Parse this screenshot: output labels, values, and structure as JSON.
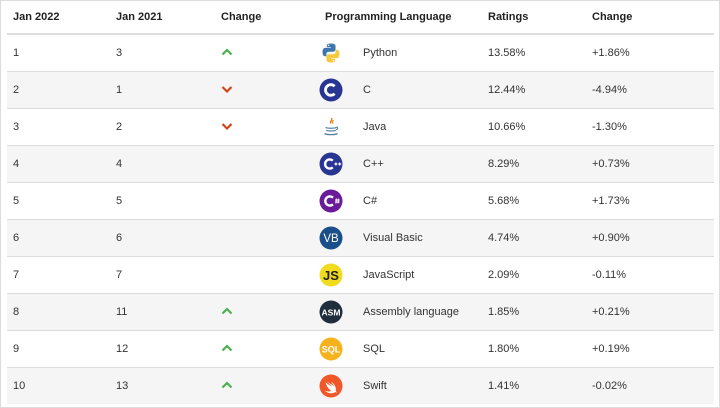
{
  "table": {
    "headers": {
      "jan2022": "Jan 2022",
      "jan2021": "Jan 2021",
      "change": "Change",
      "language": "Programming Language",
      "ratings": "Ratings",
      "delta": "Change"
    },
    "rows": [
      {
        "jan2022": "1",
        "jan2021": "3",
        "trend": "up",
        "logo": "python-logo",
        "language": "Python",
        "ratings": "13.58%",
        "delta": "+1.86%"
      },
      {
        "jan2022": "2",
        "jan2021": "1",
        "trend": "down",
        "logo": "c-logo",
        "language": "C",
        "ratings": "12.44%",
        "delta": "-4.94%"
      },
      {
        "jan2022": "3",
        "jan2021": "2",
        "trend": "down",
        "logo": "java-logo",
        "language": "Java",
        "ratings": "10.66%",
        "delta": "-1.30%"
      },
      {
        "jan2022": "4",
        "jan2021": "4",
        "trend": "none",
        "logo": "cpp-logo",
        "language": "C++",
        "ratings": "8.29%",
        "delta": "+0.73%"
      },
      {
        "jan2022": "5",
        "jan2021": "5",
        "trend": "none",
        "logo": "csharp-logo",
        "language": "C#",
        "ratings": "5.68%",
        "delta": "+1.73%"
      },
      {
        "jan2022": "6",
        "jan2021": "6",
        "trend": "none",
        "logo": "visual-basic-logo",
        "language": "Visual Basic",
        "ratings": "4.74%",
        "delta": "+0.90%"
      },
      {
        "jan2022": "7",
        "jan2021": "7",
        "trend": "none",
        "logo": "javascript-logo",
        "language": "JavaScript",
        "ratings": "2.09%",
        "delta": "-0.11%"
      },
      {
        "jan2022": "8",
        "jan2021": "11",
        "trend": "up",
        "logo": "assembly-logo",
        "language": "Assembly language",
        "ratings": "1.85%",
        "delta": "+0.21%"
      },
      {
        "jan2022": "9",
        "jan2021": "12",
        "trend": "up",
        "logo": "sql-logo",
        "language": "SQL",
        "ratings": "1.80%",
        "delta": "+0.19%"
      },
      {
        "jan2022": "10",
        "jan2021": "13",
        "trend": "up",
        "logo": "swift-logo",
        "language": "Swift",
        "ratings": "1.41%",
        "delta": "-0.02%"
      }
    ]
  },
  "colors": {
    "up": "#4caf50",
    "down": "#d0451b",
    "header_border": "#dddddd",
    "stripe": "#f5f5f5"
  }
}
